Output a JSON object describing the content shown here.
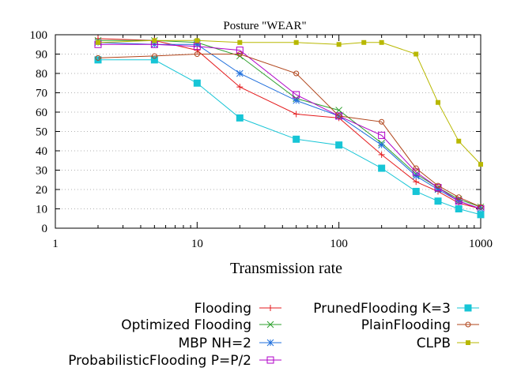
{
  "chart_data": {
    "type": "line",
    "title": "Posture \"WEAR\"",
    "xlabel": "Transmission rate",
    "ylabel": "",
    "xscale": "log",
    "xlim": [
      1,
      1000
    ],
    "ylim": [
      0,
      100
    ],
    "x_ticks": [
      1,
      10,
      100,
      1000
    ],
    "x_tick_labels": [
      "1",
      "10",
      "100",
      "1000"
    ],
    "y_ticks": [
      0,
      10,
      20,
      30,
      40,
      50,
      60,
      70,
      80,
      90,
      100
    ],
    "y_tick_labels": [
      "0",
      "10",
      "20",
      "30",
      "40",
      "50",
      "60",
      "70",
      "80",
      "90",
      "100"
    ],
    "grid": "y-dotted",
    "legend": "below",
    "series": [
      {
        "name": "Flooding",
        "color": "#e41a1c",
        "marker": "plus",
        "x": [
          2,
          5,
          10,
          20,
          50,
          100,
          200,
          350,
          500,
          700,
          1000
        ],
        "y": [
          98,
          97,
          92,
          73,
          59,
          57,
          38,
          24,
          19,
          13,
          10
        ]
      },
      {
        "name": "Optimized Flooding",
        "color": "#2ca02c",
        "marker": "cross",
        "x": [
          2,
          5,
          10,
          20,
          50,
          100,
          200,
          350,
          500,
          700,
          1000
        ],
        "y": [
          97,
          97,
          96,
          89,
          67,
          61,
          44,
          28,
          21,
          15,
          11
        ]
      },
      {
        "name": "MBP NH=2",
        "color": "#1f6fdc",
        "marker": "star",
        "x": [
          2,
          5,
          10,
          20,
          50,
          100,
          200,
          350,
          500,
          700,
          1000
        ],
        "y": [
          96,
          95,
          95,
          80,
          66,
          58,
          43,
          27,
          20,
          14,
          10
        ]
      },
      {
        "name": "ProbabilisticFlooding P=P/2",
        "color": "#b000c8",
        "marker": "square-open",
        "x": [
          2,
          5,
          10,
          20,
          50,
          100,
          200,
          350,
          500,
          700,
          1000
        ],
        "y": [
          95,
          95,
          94,
          92,
          69,
          58,
          48,
          29,
          21,
          14,
          10
        ]
      },
      {
        "name": "PrunedFlooding K=3",
        "color": "#17c5d6",
        "marker": "square-filled",
        "x": [
          2,
          5,
          10,
          20,
          50,
          100,
          200,
          350,
          500,
          700,
          1000
        ],
        "y": [
          87,
          87,
          75,
          57,
          46,
          43,
          31,
          19,
          14,
          10,
          7
        ]
      },
      {
        "name": "PlainFlooding",
        "color": "#b0441a",
        "marker": "circle-open",
        "x": [
          2,
          5,
          10,
          20,
          50,
          100,
          200,
          350,
          500,
          700,
          1000
        ],
        "y": [
          88,
          89,
          90,
          90,
          80,
          58,
          55,
          31,
          22,
          16,
          11
        ]
      },
      {
        "name": "CLPB",
        "color": "#b8b800",
        "marker": "square-small",
        "x": [
          2,
          5,
          10,
          20,
          50,
          100,
          150,
          200,
          350,
          500,
          700,
          1000
        ],
        "y": [
          96,
          97,
          97,
          96,
          96,
          95,
          96,
          96,
          90,
          65,
          45,
          33
        ]
      }
    ]
  }
}
